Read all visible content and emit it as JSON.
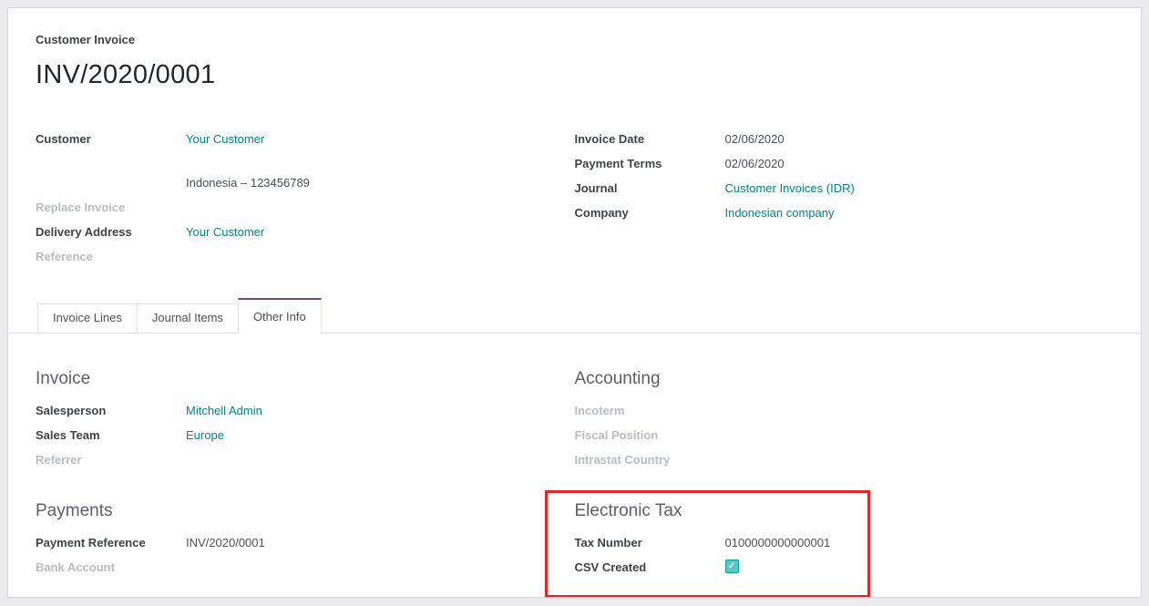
{
  "colors": {
    "accent": "#008784",
    "tab_active_border": "#714B67",
    "highlight_red": "#e2262b",
    "checkbox_fill": "#5ec6c2",
    "checkbox_border": "#00a09d"
  },
  "header": {
    "doc_type": "Customer Invoice",
    "title": "INV/2020/0001",
    "left_fields": [
      {
        "label": "Customer",
        "value": "Your Customer"
      },
      {
        "label": "",
        "value": ""
      },
      {
        "label": "",
        "value": "Indonesia – 123456789"
      },
      {
        "label": "Replace Invoice",
        "value": ""
      },
      {
        "label": "Delivery Address",
        "value": "Your Customer"
      },
      {
        "label": "Reference",
        "value": ""
      }
    ],
    "right_fields": [
      {
        "label": "Invoice Date",
        "value": "02/06/2020"
      },
      {
        "label": "Payment Terms",
        "value": "02/06/2020"
      },
      {
        "label": "Journal",
        "value": "Customer Invoices (IDR)"
      },
      {
        "label": "Company",
        "value": "Indonesian company"
      }
    ]
  },
  "tabs": [
    {
      "label": "Invoice Lines"
    },
    {
      "label": "Journal Items"
    },
    {
      "label": "Other Info"
    }
  ],
  "sections": {
    "invoice": {
      "heading": "Invoice",
      "fields": [
        {
          "label": "Salesperson",
          "value": "Mitchell Admin"
        },
        {
          "label": "Sales Team",
          "value": "Europe"
        },
        {
          "label": "Referrer",
          "value": ""
        }
      ]
    },
    "accounting": {
      "heading": "Accounting",
      "fields": [
        {
          "label": "Incoterm",
          "value": ""
        },
        {
          "label": "Fiscal Position",
          "value": ""
        },
        {
          "label": "Intrastat Country",
          "value": ""
        }
      ]
    },
    "payments": {
      "heading": "Payments",
      "fields": [
        {
          "label": "Payment Reference",
          "value": "INV/2020/0001"
        },
        {
          "label": "Bank Account",
          "value": ""
        }
      ]
    },
    "electronic_tax": {
      "heading": "Electronic Tax",
      "tax_number_label": "Tax Number",
      "tax_number": "0100000000000001",
      "csv_label": "CSV Created",
      "csv_checked": true,
      "checkmark_glyph": "✓"
    }
  }
}
